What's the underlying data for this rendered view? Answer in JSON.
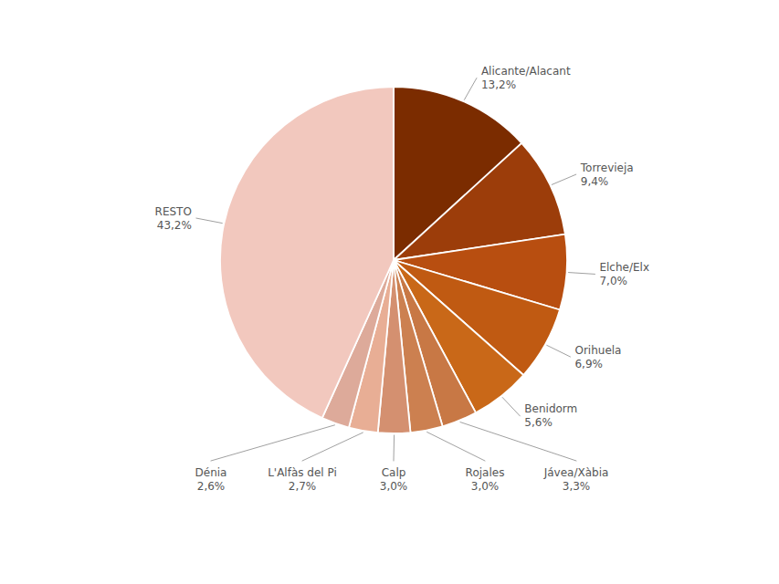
{
  "chart_data": {
    "type": "pie",
    "categories": [
      "Alicante/Alacant",
      "Torrevieja",
      "Elche/Elx",
      "Orihuela",
      "Benidorm",
      "Jávea/Xàbia",
      "Rojales",
      "Calp",
      "L'Alfàs del Pi",
      "Dénia",
      "RESTO"
    ],
    "values": [
      13.2,
      9.4,
      7.0,
      6.9,
      5.6,
      3.3,
      3.0,
      3.0,
      2.7,
      2.6,
      43.2
    ],
    "value_labels": [
      "13,2%",
      "9,4%",
      "7,0%",
      "6,9%",
      "5,6%",
      "3,3%",
      "3,0%",
      "3,0%",
      "2,7%",
      "2,6%",
      "43,2%"
    ],
    "colors": [
      "#7B2C00",
      "#9C3D0A",
      "#B84E10",
      "#C05A12",
      "#C96818",
      "#C87845",
      "#CC8050",
      "#D49070",
      "#E8AE95",
      "#DDAA9A",
      "#F2C8BE"
    ],
    "data_labels": true
  }
}
